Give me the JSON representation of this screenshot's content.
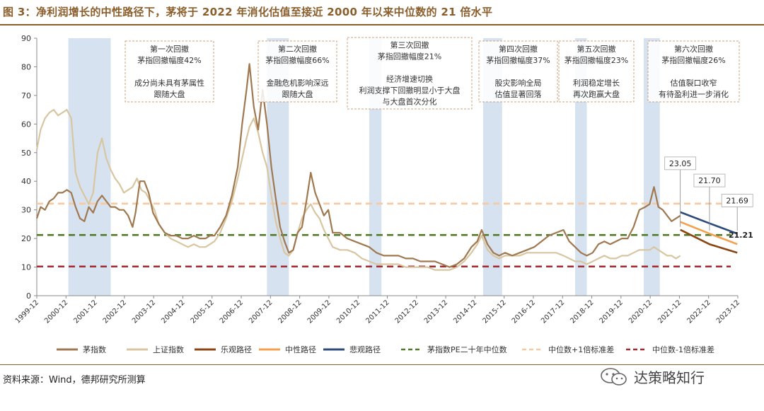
{
  "figure_title": "图 3：净利润增长的中性路径下，茅将于 2022 年消化估值至接近 2000 年以来中位数的 21 倍水平",
  "source_note": "资料来源：Wind，德邦研究所测算",
  "brand_text": "达策略知行",
  "colors": {
    "moutai": "#A07850",
    "shanghai": "#D8C6A0",
    "optimistic": "#8B4513",
    "neutral": "#F5A04E",
    "pessimistic": "#2E4A7A",
    "median": "#4F7A28",
    "plus1sd": "#F8C9A0",
    "minus1sd": "#A0282E",
    "shade": "#D6E2F0",
    "title": "#8B5E2B"
  },
  "chart_data": {
    "type": "line",
    "ylim": [
      0,
      90
    ],
    "yticks": [
      "0",
      "10",
      "20",
      "30",
      "40",
      "50",
      "60",
      "70",
      "80",
      "90"
    ],
    "xticks": [
      "1999-12",
      "2000-12",
      "2001-12",
      "2002-12",
      "2003-12",
      "2004-12",
      "2005-12",
      "2006-12",
      "2007-12",
      "2008-12",
      "2009-12",
      "2010-12",
      "2011-12",
      "2012-12",
      "2013-12",
      "2014-12",
      "2015-12",
      "2016-12",
      "2017-12",
      "2018-12",
      "2019-12",
      "2020-12",
      "2021-12",
      "2022-12",
      "2023-12"
    ],
    "reference_lines": [
      {
        "name": "中位数+1倍标准差",
        "value": 32.2
      },
      {
        "name": "茅指数PE二十年中位数",
        "value": 21.21
      },
      {
        "name": "中位数-1倍标准差",
        "value": 10.2
      }
    ],
    "shaded_periods": [
      [
        2001.0,
        2002.45
      ],
      [
        2007.8,
        2008.55
      ],
      [
        2011.3,
        2011.72
      ],
      [
        2015.2,
        2015.85
      ],
      [
        2018.35,
        2018.75
      ],
      [
        2020.7,
        2021.25
      ]
    ],
    "series": [
      {
        "name": "茅指数",
        "points": [
          [
            1999.92,
            27
          ],
          [
            2000.05,
            31
          ],
          [
            2000.2,
            30
          ],
          [
            2000.35,
            33
          ],
          [
            2000.5,
            34
          ],
          [
            2000.65,
            36
          ],
          [
            2000.8,
            36
          ],
          [
            2000.95,
            37
          ],
          [
            2001.1,
            36
          ],
          [
            2001.25,
            31
          ],
          [
            2001.4,
            27
          ],
          [
            2001.55,
            26
          ],
          [
            2001.7,
            31
          ],
          [
            2001.85,
            29
          ],
          [
            2002.0,
            33
          ],
          [
            2002.15,
            35
          ],
          [
            2002.3,
            33
          ],
          [
            2002.45,
            31
          ],
          [
            2002.6,
            31
          ],
          [
            2002.75,
            30
          ],
          [
            2002.9,
            30
          ],
          [
            2003.05,
            28
          ],
          [
            2003.2,
            24
          ],
          [
            2003.3,
            29
          ],
          [
            2003.45,
            40
          ],
          [
            2003.6,
            40
          ],
          [
            2003.75,
            36
          ],
          [
            2003.9,
            29
          ],
          [
            2004.1,
            25
          ],
          [
            2004.3,
            22
          ],
          [
            2004.5,
            21
          ],
          [
            2004.7,
            21
          ],
          [
            2004.9,
            20
          ],
          [
            2005.1,
            20
          ],
          [
            2005.3,
            21
          ],
          [
            2005.5,
            20
          ],
          [
            2005.7,
            20
          ],
          [
            2005.85,
            21
          ],
          [
            2006.0,
            21
          ],
          [
            2006.2,
            24
          ],
          [
            2006.4,
            28
          ],
          [
            2006.6,
            35
          ],
          [
            2006.8,
            45
          ],
          [
            2006.95,
            60
          ],
          [
            2007.1,
            72
          ],
          [
            2007.2,
            81
          ],
          [
            2007.35,
            66
          ],
          [
            2007.5,
            58
          ],
          [
            2007.65,
            72
          ],
          [
            2007.8,
            60
          ],
          [
            2007.95,
            45
          ],
          [
            2008.1,
            34
          ],
          [
            2008.25,
            24
          ],
          [
            2008.4,
            19
          ],
          [
            2008.55,
            15
          ],
          [
            2008.7,
            16
          ],
          [
            2008.85,
            22
          ],
          [
            2009.0,
            24
          ],
          [
            2009.15,
            33
          ],
          [
            2009.3,
            43
          ],
          [
            2009.45,
            36
          ],
          [
            2009.6,
            32
          ],
          [
            2009.75,
            28
          ],
          [
            2009.9,
            30
          ],
          [
            2010.05,
            22
          ],
          [
            2010.3,
            22
          ],
          [
            2010.55,
            20
          ],
          [
            2010.8,
            19
          ],
          [
            2011.05,
            18
          ],
          [
            2011.3,
            17
          ],
          [
            2011.55,
            15
          ],
          [
            2011.8,
            14
          ],
          [
            2012.05,
            14
          ],
          [
            2012.3,
            14
          ],
          [
            2012.55,
            13
          ],
          [
            2012.8,
            13
          ],
          [
            2013.05,
            12
          ],
          [
            2013.3,
            12
          ],
          [
            2013.55,
            12
          ],
          [
            2013.8,
            11
          ],
          [
            2014.05,
            10
          ],
          [
            2014.3,
            11
          ],
          [
            2014.55,
            13
          ],
          [
            2014.8,
            17
          ],
          [
            2015.0,
            19
          ],
          [
            2015.15,
            23
          ],
          [
            2015.35,
            18
          ],
          [
            2015.55,
            15
          ],
          [
            2015.75,
            14
          ],
          [
            2015.95,
            15
          ],
          [
            2016.2,
            14
          ],
          [
            2016.45,
            15
          ],
          [
            2016.7,
            16
          ],
          [
            2016.95,
            17
          ],
          [
            2017.2,
            19
          ],
          [
            2017.45,
            21
          ],
          [
            2017.7,
            22
          ],
          [
            2017.95,
            23
          ],
          [
            2018.15,
            19
          ],
          [
            2018.35,
            17
          ],
          [
            2018.55,
            15
          ],
          [
            2018.75,
            14
          ],
          [
            2018.95,
            15
          ],
          [
            2019.15,
            18
          ],
          [
            2019.35,
            19
          ],
          [
            2019.55,
            18
          ],
          [
            2019.75,
            19
          ],
          [
            2019.95,
            20
          ],
          [
            2020.15,
            20
          ],
          [
            2020.35,
            24
          ],
          [
            2020.55,
            30
          ],
          [
            2020.75,
            31
          ],
          [
            2020.9,
            32
          ],
          [
            2021.05,
            38
          ],
          [
            2021.2,
            31
          ],
          [
            2021.35,
            30
          ],
          [
            2021.5,
            28
          ],
          [
            2021.65,
            26
          ],
          [
            2021.8,
            27
          ],
          [
            2021.95,
            28
          ]
        ]
      },
      {
        "name": "上证指数",
        "points": [
          [
            1999.92,
            51
          ],
          [
            2000.05,
            58
          ],
          [
            2000.2,
            62
          ],
          [
            2000.35,
            64
          ],
          [
            2000.5,
            65
          ],
          [
            2000.65,
            63
          ],
          [
            2000.8,
            64
          ],
          [
            2000.95,
            65
          ],
          [
            2001.1,
            62
          ],
          [
            2001.25,
            43
          ],
          [
            2001.4,
            38
          ],
          [
            2001.55,
            35
          ],
          [
            2001.7,
            32
          ],
          [
            2001.85,
            36
          ],
          [
            2002.0,
            50
          ],
          [
            2002.15,
            55
          ],
          [
            2002.3,
            48
          ],
          [
            2002.45,
            44
          ],
          [
            2002.6,
            41
          ],
          [
            2002.75,
            39
          ],
          [
            2002.9,
            36
          ],
          [
            2003.05,
            37
          ],
          [
            2003.2,
            38
          ],
          [
            2003.35,
            41
          ],
          [
            2003.5,
            37
          ],
          [
            2003.65,
            36
          ],
          [
            2003.8,
            33
          ],
          [
            2003.95,
            30
          ],
          [
            2004.1,
            25
          ],
          [
            2004.3,
            22
          ],
          [
            2004.5,
            20
          ],
          [
            2004.7,
            19
          ],
          [
            2004.9,
            18
          ],
          [
            2005.1,
            17
          ],
          [
            2005.3,
            18
          ],
          [
            2005.5,
            17
          ],
          [
            2005.7,
            17
          ],
          [
            2005.85,
            18
          ],
          [
            2006.0,
            19
          ],
          [
            2006.2,
            22
          ],
          [
            2006.4,
            27
          ],
          [
            2006.6,
            33
          ],
          [
            2006.8,
            41
          ],
          [
            2006.95,
            48
          ],
          [
            2007.1,
            55
          ],
          [
            2007.2,
            59
          ],
          [
            2007.35,
            62
          ],
          [
            2007.5,
            57
          ],
          [
            2007.65,
            50
          ],
          [
            2007.8,
            45
          ],
          [
            2007.95,
            35
          ],
          [
            2008.1,
            26
          ],
          [
            2008.25,
            20
          ],
          [
            2008.4,
            15
          ],
          [
            2008.55,
            14
          ],
          [
            2008.7,
            16
          ],
          [
            2008.85,
            22
          ],
          [
            2009.0,
            27
          ],
          [
            2009.15,
            30
          ],
          [
            2009.3,
            32
          ],
          [
            2009.45,
            29
          ],
          [
            2009.6,
            27
          ],
          [
            2009.75,
            23
          ],
          [
            2009.9,
            20
          ],
          [
            2010.05,
            17
          ],
          [
            2010.3,
            16
          ],
          [
            2010.55,
            16
          ],
          [
            2010.8,
            15
          ],
          [
            2011.05,
            13
          ],
          [
            2011.3,
            12
          ],
          [
            2011.55,
            11
          ],
          [
            2011.8,
            11
          ],
          [
            2012.05,
            11
          ],
          [
            2012.3,
            11
          ],
          [
            2012.55,
            10
          ],
          [
            2012.8,
            10
          ],
          [
            2013.05,
            10
          ],
          [
            2013.3,
            10
          ],
          [
            2013.55,
            9
          ],
          [
            2013.8,
            9
          ],
          [
            2014.05,
            9
          ],
          [
            2014.3,
            10
          ],
          [
            2014.55,
            12
          ],
          [
            2014.8,
            15
          ],
          [
            2015.0,
            18
          ],
          [
            2015.15,
            21
          ],
          [
            2015.35,
            16
          ],
          [
            2015.55,
            14
          ],
          [
            2015.75,
            13
          ],
          [
            2015.95,
            14
          ],
          [
            2016.2,
            14
          ],
          [
            2016.45,
            14
          ],
          [
            2016.7,
            15
          ],
          [
            2016.95,
            15
          ],
          [
            2017.2,
            15
          ],
          [
            2017.45,
            15
          ],
          [
            2017.7,
            15
          ],
          [
            2017.95,
            14
          ],
          [
            2018.15,
            13
          ],
          [
            2018.35,
            12
          ],
          [
            2018.55,
            12
          ],
          [
            2018.75,
            11
          ],
          [
            2018.95,
            12
          ],
          [
            2019.15,
            13
          ],
          [
            2019.35,
            14
          ],
          [
            2019.55,
            13
          ],
          [
            2019.75,
            13
          ],
          [
            2019.95,
            14
          ],
          [
            2020.15,
            14
          ],
          [
            2020.35,
            15
          ],
          [
            2020.55,
            16
          ],
          [
            2020.75,
            16
          ],
          [
            2020.9,
            16
          ],
          [
            2021.05,
            17
          ],
          [
            2021.2,
            16
          ],
          [
            2021.35,
            15
          ],
          [
            2021.5,
            14
          ],
          [
            2021.65,
            14
          ],
          [
            2021.8,
            13
          ],
          [
            2021.95,
            14
          ]
        ]
      },
      {
        "name": "乐观路径",
        "points": [
          [
            2021.95,
            23.05
          ],
          [
            2022.95,
            18
          ],
          [
            2023.9,
            15
          ]
        ]
      },
      {
        "name": "中性路径",
        "points": [
          [
            2021.95,
            25.8
          ],
          [
            2022.95,
            21.7
          ],
          [
            2023.9,
            18
          ]
        ]
      },
      {
        "name": "悲观路径",
        "points": [
          [
            2021.95,
            29.2
          ],
          [
            2022.95,
            25.3
          ],
          [
            2023.9,
            21.69
          ]
        ]
      }
    ],
    "data_labels": [
      "23.05",
      "21.70",
      "21.69",
      "21.21"
    ],
    "legend": [
      "茅指数",
      "上证指数",
      "乐观路径",
      "中性路径",
      "悲观路径",
      "茅指数PE二十年中位数",
      "中位数+1倍标准差",
      "中位数-1倍标准差"
    ],
    "legend_placement": "bottom",
    "annotations": [
      {
        "lines": [
          "第一次回撤",
          "茅指回撤幅度42%",
          "",
          "成分尚未具有茅属性",
          "跟随大盘"
        ]
      },
      {
        "lines": [
          "第二次回撤",
          "茅指回撤幅度66%",
          "",
          "金融危机影响深远",
          "跟随大盘"
        ]
      },
      {
        "lines": [
          "第三次回撤",
          "茅指回撤幅度21%",
          "",
          "经济增速切换",
          "利润支撑下回撤明显小于大盘",
          "与大盘首次分化"
        ]
      },
      {
        "lines": [
          "第四次回撤",
          "茅指回撤幅度37%",
          "",
          "股灾影响全局",
          "估值显著回落"
        ]
      },
      {
        "lines": [
          "第五次回撤",
          "茅指回撤幅度23%",
          "",
          "利润稳定增长",
          "再次跑赢大盘"
        ]
      },
      {
        "lines": [
          "第六次回撤",
          "茅指回撤幅度26%",
          "",
          "估值裂口收窄",
          "有待盈利进一步消化"
        ]
      }
    ]
  }
}
